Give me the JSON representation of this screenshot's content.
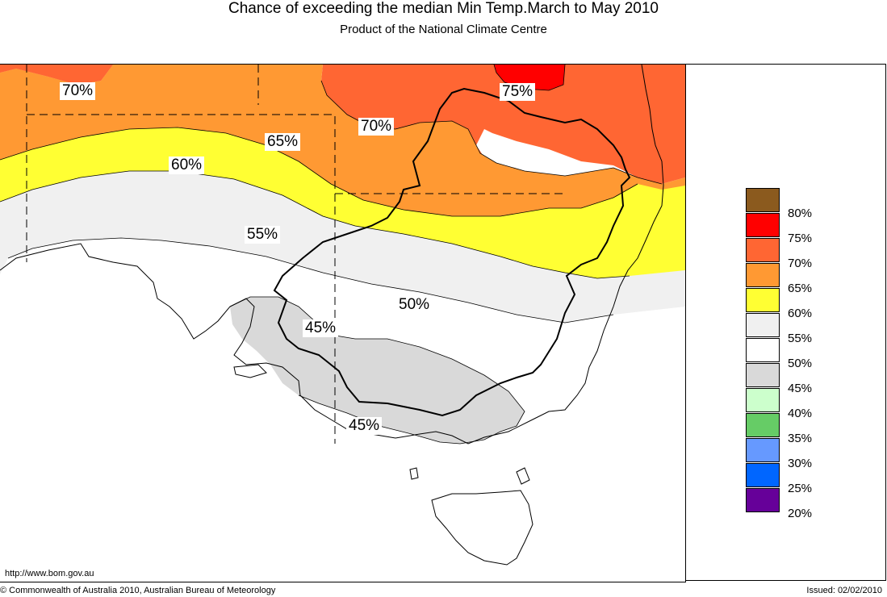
{
  "header": {
    "title": "Chance of exceeding the median Min Temp.March to May 2010",
    "subtitle": "Product of the National Climate Centre"
  },
  "legend": [
    {
      "label": "80%",
      "color": "#8B5A1E"
    },
    {
      "label": "75%",
      "color": "#FF0000"
    },
    {
      "label": "70%",
      "color": "#FF6633"
    },
    {
      "label": "65%",
      "color": "#FF9933"
    },
    {
      "label": "60%",
      "color": "#FFFF33"
    },
    {
      "label": "55%",
      "color": "#F0F0F0"
    },
    {
      "label": "50%",
      "color": "#FFFFFF"
    },
    {
      "label": "45%",
      "color": "#D9D9D9"
    },
    {
      "label": "40%",
      "color": "#CCFFCC"
    },
    {
      "label": "35%",
      "color": "#66CC66"
    },
    {
      "label": "30%",
      "color": "#6699FF"
    },
    {
      "label": "25%",
      "color": "#0066FF"
    },
    {
      "label": "20%",
      "color": "#660099"
    }
  ],
  "map_labels": {
    "nw_70": "70%",
    "ne_75": "75%",
    "mid_70": "70%",
    "c_65": "65%",
    "w_60": "60%",
    "c_55": "55%",
    "e_50": "50%",
    "vic_45": "45%",
    "s_45": "45%"
  },
  "footer": {
    "url": "http://www.bom.gov.au",
    "copyright": "© Commonwealth of Australia 2010, Australian Bureau of Meteorology",
    "issued": "Issued: 02/02/2010"
  }
}
